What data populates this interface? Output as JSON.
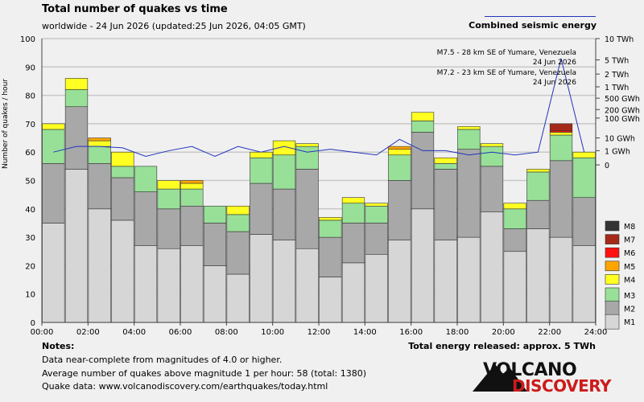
{
  "title": "Total number of quakes vs time",
  "subtitle": "worldwide - 24 Jun 2026 (updated:25 Jun 2026, 04:05 GMT)",
  "energy_legend": "Combined seismic energy",
  "ylabel": "Number of quakes / hour",
  "notes": {
    "heading": "Notes:",
    "lines": [
      "Data near-complete from magnitudes of 4.0 or higher.",
      "Average number of quakes above magnitude 1 per hour: 58 (total: 1380)",
      "Quake data: www.volcanodiscovery.com/earthquakes/today.html"
    ]
  },
  "total_energy": "Total energy released: approx. 5 TWh",
  "logo": {
    "line1": "VOLCANO",
    "line2": "DISCOVERY"
  },
  "colors": {
    "M1": "#d6d6d6",
    "M2": "#a8a8a8",
    "M3": "#98e098",
    "M4": "#ffff22",
    "M5": "#ffa500",
    "M6": "#ff1111",
    "M7": "#a52a1a",
    "M8": "#333333",
    "energy_line": "#2233bb",
    "grid": "#c8c8c8"
  },
  "chart_data": {
    "type": "bar",
    "stacked": true,
    "xlabel": "",
    "ylabel": "Number of quakes / hour",
    "ylim": [
      0,
      100
    ],
    "yticks": [
      0,
      10,
      20,
      30,
      40,
      50,
      60,
      70,
      80,
      90,
      100
    ],
    "xticks": [
      "00:00",
      "02:00",
      "04:00",
      "06:00",
      "08:00",
      "10:00",
      "12:00",
      "14:00",
      "16:00",
      "18:00",
      "20:00",
      "22:00",
      "24:00"
    ],
    "categories": [
      "00",
      "01",
      "02",
      "03",
      "04",
      "05",
      "06",
      "07",
      "08",
      "09",
      "10",
      "11",
      "12",
      "13",
      "14",
      "15",
      "16",
      "17",
      "18",
      "19",
      "20",
      "21",
      "22",
      "23"
    ],
    "grid": true,
    "legend_position": "bottom-right",
    "series": [
      {
        "name": "M1",
        "values": [
          35,
          54,
          40,
          36,
          27,
          26,
          27,
          20,
          17,
          31,
          29,
          26,
          16,
          21,
          24,
          29,
          40,
          29,
          30,
          39,
          25,
          33,
          30,
          27
        ]
      },
      {
        "name": "M2",
        "values": [
          21,
          22,
          16,
          15,
          19,
          14,
          14,
          15,
          15,
          18,
          18,
          28,
          14,
          14,
          11,
          21,
          27,
          25,
          31,
          16,
          8,
          10,
          27,
          17
        ]
      },
      {
        "name": "M3",
        "values": [
          12,
          6,
          6,
          4,
          9,
          7,
          6,
          6,
          6,
          9,
          12,
          8,
          6,
          7,
          6,
          9,
          4,
          2,
          7,
          7,
          7,
          10,
          9,
          14
        ]
      },
      {
        "name": "M4",
        "values": [
          2,
          4,
          2,
          5,
          0,
          3,
          2,
          0,
          3,
          2,
          5,
          1,
          1,
          2,
          1,
          2,
          3,
          2,
          1,
          1,
          2,
          1,
          1,
          2
        ]
      },
      {
        "name": "M5",
        "values": [
          0,
          0,
          1,
          0,
          0,
          0,
          1,
          0,
          0,
          0,
          0,
          0,
          0,
          0,
          0,
          1,
          0,
          0,
          0,
          0,
          0,
          0,
          0,
          0
        ]
      },
      {
        "name": "M6",
        "values": [
          0,
          0,
          0,
          0,
          0,
          0,
          0,
          0,
          0,
          0,
          0,
          0,
          0,
          0,
          0,
          0,
          0,
          0,
          0,
          0,
          0,
          0,
          0.5,
          0
        ]
      },
      {
        "name": "M7",
        "values": [
          0,
          0,
          0,
          0,
          0,
          0,
          0,
          0,
          0,
          0,
          0,
          0,
          0,
          0,
          0,
          0,
          0,
          0,
          0,
          0,
          0,
          0,
          2.5,
          0
        ]
      },
      {
        "name": "M8",
        "values": [
          0,
          0,
          0,
          0,
          0,
          0,
          0,
          0,
          0,
          0,
          0,
          0,
          0,
          0,
          0,
          0,
          0,
          0,
          0,
          0,
          0,
          0,
          0,
          0
        ]
      }
    ],
    "energy_axis": {
      "type": "log",
      "labels": [
        "10 TWh",
        "5 TWh",
        "2 TWh",
        "1 TWh",
        "500 GWh",
        "200 GWh",
        "100 GWh",
        "10 GWh",
        "1 GWh",
        "0"
      ],
      "label_levels": [
        100,
        92.5,
        87.5,
        83,
        79,
        75,
        72,
        65,
        60.5,
        55.5
      ]
    },
    "energy_series": {
      "name": "Combined seismic energy",
      "x": [
        0.5,
        1.5,
        2.5,
        3.5,
        4.5,
        5.5,
        6.5,
        7.5,
        8.5,
        9.5,
        10.5,
        11.5,
        12.5,
        13.5,
        14.5,
        15.5,
        16.5,
        17.5,
        18.5,
        19.5,
        20.5,
        21.5,
        22.5,
        23.5
      ],
      "level": [
        60,
        62,
        62,
        61.5,
        58.5,
        60.5,
        62,
        58.5,
        62,
        60,
        62,
        60,
        61,
        60,
        59,
        64.5,
        60.5,
        60.5,
        59,
        60,
        59,
        60,
        93,
        60
      ]
    },
    "annotations": [
      {
        "text": "M7.5 - 28 km SE of Yumare, Venezuela",
        "date": "24 Jun 2026"
      },
      {
        "text": "M7.2 - 23 km SE of Yumare, Venezuela",
        "date": "24 Jun 2026"
      }
    ],
    "legend": [
      "M8",
      "M7",
      "M6",
      "M5",
      "M4",
      "M3",
      "M2",
      "M1"
    ]
  }
}
